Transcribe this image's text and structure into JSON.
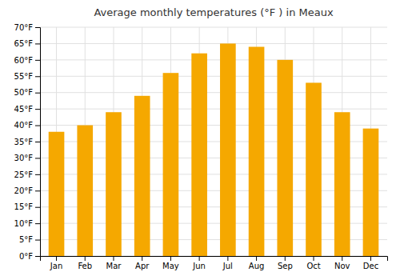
{
  "chart_data": {
    "type": "bar",
    "title": "Average monthly temperatures (°F ) in Meaux",
    "categories": [
      "Jan",
      "Feb",
      "Mar",
      "Apr",
      "May",
      "Jun",
      "Jul",
      "Aug",
      "Sep",
      "Oct",
      "Nov",
      "Dec"
    ],
    "values": [
      38,
      40,
      44,
      49,
      56,
      62,
      65,
      64,
      60,
      53,
      44,
      39
    ],
    "color": "#F5A800",
    "ylim": [
      0,
      70
    ],
    "yticks": [
      {
        "value": 0,
        "label": "0°F"
      },
      {
        "value": 5,
        "label": "5°F"
      },
      {
        "value": 10,
        "label": "10°F"
      },
      {
        "value": 15,
        "label": "15°F"
      },
      {
        "value": 20,
        "label": "20°F"
      },
      {
        "value": 25,
        "label": "25°F"
      },
      {
        "value": 30,
        "label": "30°F"
      },
      {
        "value": 35,
        "label": "35°F"
      },
      {
        "value": 40,
        "label": "40°F"
      },
      {
        "value": 45,
        "label": "45°F"
      },
      {
        "value": 50,
        "label": "50°F"
      },
      {
        "value": 55,
        "label": "55°F"
      },
      {
        "value": 60,
        "label": "60°F"
      },
      {
        "value": 65,
        "label": "65°F"
      },
      {
        "value": 70,
        "label": "70°F"
      }
    ],
    "grid": true
  }
}
